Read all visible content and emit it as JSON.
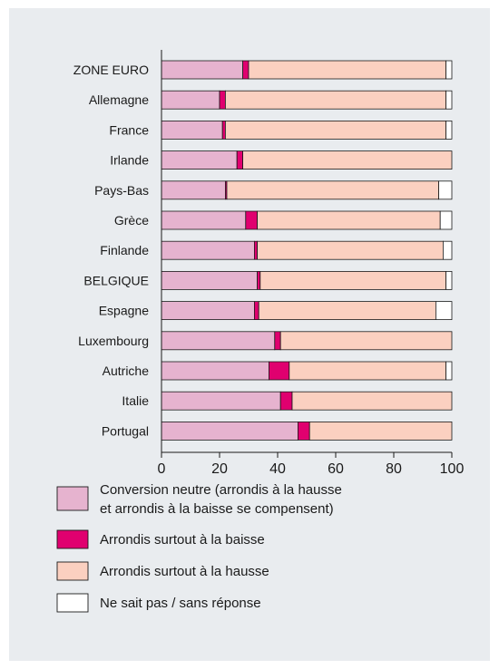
{
  "chart_data": {
    "type": "bar",
    "orientation": "horizontal",
    "stacked": true,
    "categories": [
      "ZONE EURO",
      "Allemagne",
      "France",
      "Irlande",
      "Pays-Bas",
      "Grèce",
      "Finlande",
      "BELGIQUE",
      "Espagne",
      "Luxembourg",
      "Autriche",
      "Italie",
      "Portugal"
    ],
    "series": [
      {
        "name": "Conversion neutre (arrondis à la hausse et arrondis à la baisse se compensent)",
        "legend_lines": [
          "Conversion neutre (arrondis à la hausse",
          "et arrondis à la baisse se compensent)"
        ],
        "color": "#e6b3cf",
        "values": [
          28,
          20,
          21,
          26,
          22,
          29,
          32,
          33,
          32,
          39,
          37,
          41,
          47
        ]
      },
      {
        "name": "Arrondis surtout à la baisse",
        "legend_lines": [
          "Arrondis surtout à la baisse"
        ],
        "color": "#e0006f",
        "values": [
          2,
          2,
          1,
          2,
          0.5,
          4,
          1,
          1,
          1.5,
          2,
          7,
          4,
          4
        ]
      },
      {
        "name": "Arrondis surtout à la hausse",
        "legend_lines": [
          "Arrondis surtout à la hausse"
        ],
        "color": "#fbd0c0",
        "values": [
          68,
          76,
          76,
          72,
          73,
          63,
          64,
          64,
          61,
          59,
          54,
          55,
          49
        ]
      },
      {
        "name": "Ne sait pas / sans réponse",
        "legend_lines": [
          "Ne sait pas / sans réponse"
        ],
        "color": "#ffffff",
        "values": [
          2,
          2,
          2,
          0,
          4.5,
          4,
          3,
          2,
          5.5,
          0,
          2,
          0,
          0
        ]
      }
    ],
    "xlim": [
      0,
      100
    ],
    "x_ticks": [
      0,
      20,
      40,
      60,
      80,
      100
    ],
    "title": "",
    "xlabel": "",
    "ylabel": "",
    "grid": false,
    "legend_position": "bottom"
  }
}
